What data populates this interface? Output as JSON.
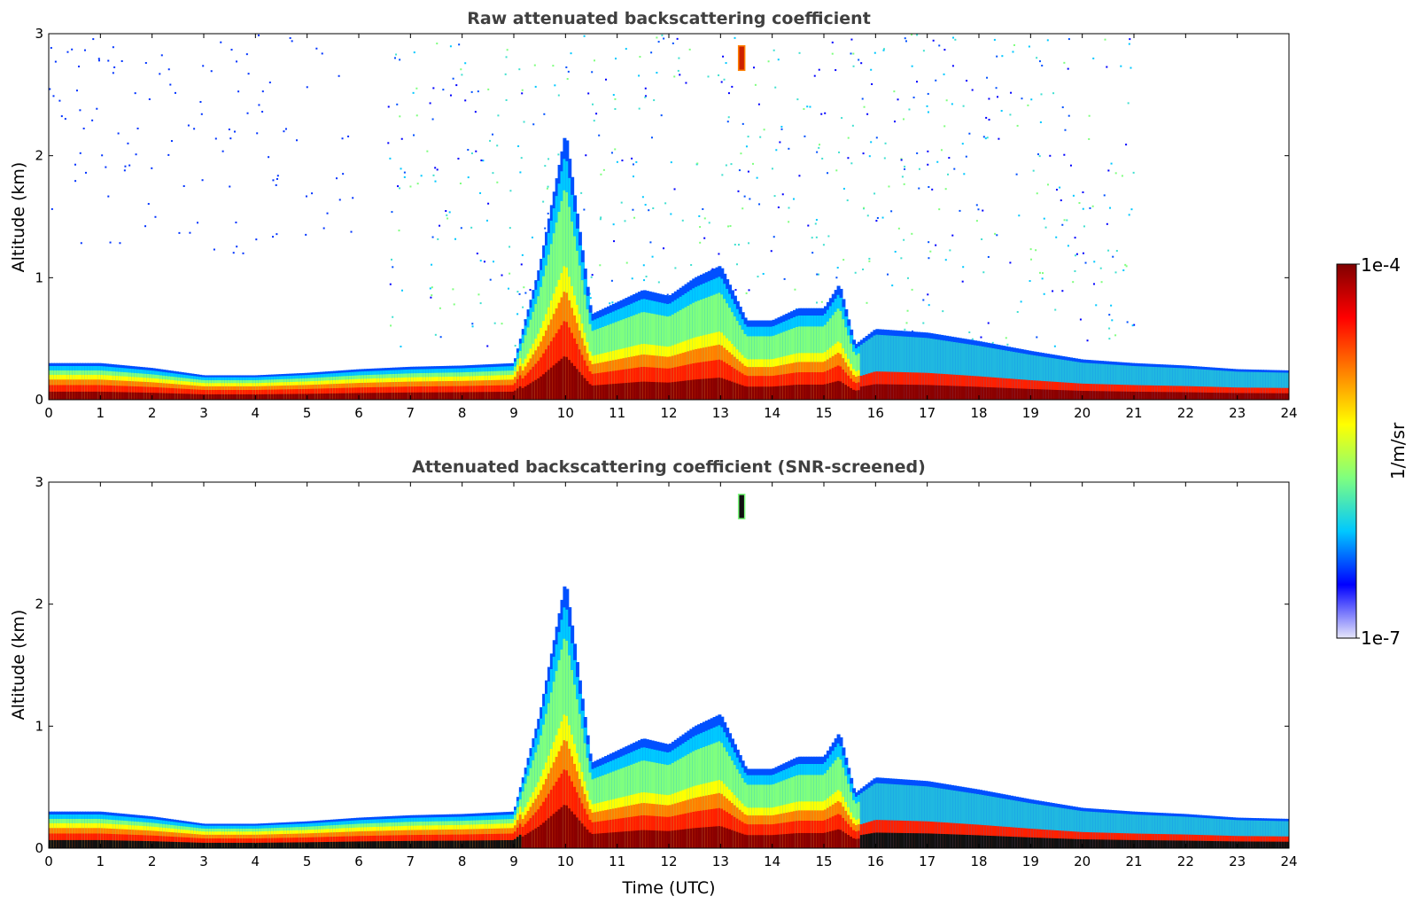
{
  "chart_data": [
    {
      "type": "heatmap",
      "title": "Raw attenuated backscattering coefficient",
      "xlabel": "",
      "ylabel": "Altitude (km)",
      "xlim": [
        0,
        24
      ],
      "ylim": [
        0,
        3
      ],
      "xticks": [
        "0",
        "1",
        "2",
        "3",
        "4",
        "5",
        "6",
        "7",
        "8",
        "9",
        "10",
        "11",
        "12",
        "13",
        "14",
        "15",
        "16",
        "17",
        "18",
        "19",
        "20",
        "21",
        "22",
        "23",
        "24"
      ],
      "yticks": [
        "0",
        "1",
        "2",
        "3"
      ],
      "layer_top_km": [
        [
          0,
          0.3
        ],
        [
          1,
          0.3
        ],
        [
          2,
          0.26
        ],
        [
          3,
          0.2
        ],
        [
          4,
          0.2
        ],
        [
          5,
          0.22
        ],
        [
          6,
          0.25
        ],
        [
          7,
          0.27
        ],
        [
          8,
          0.28
        ],
        [
          9,
          0.3
        ],
        [
          9.5,
          1.1
        ],
        [
          10,
          2.2
        ],
        [
          10.5,
          0.7
        ],
        [
          11,
          0.8
        ],
        [
          11.5,
          0.9
        ],
        [
          12,
          0.85
        ],
        [
          12.5,
          1.0
        ],
        [
          13,
          1.1
        ],
        [
          13.5,
          0.65
        ],
        [
          14,
          0.65
        ],
        [
          14.5,
          0.75
        ],
        [
          15,
          0.75
        ],
        [
          15.3,
          0.95
        ],
        [
          15.6,
          0.45
        ],
        [
          16,
          0.58
        ],
        [
          17,
          0.55
        ],
        [
          18,
          0.48
        ],
        [
          19,
          0.4
        ],
        [
          20,
          0.33
        ],
        [
          21,
          0.3
        ],
        [
          22,
          0.28
        ],
        [
          23,
          0.25
        ],
        [
          24,
          0.24
        ]
      ],
      "noise_region_km": {
        "x": [
          6.5,
          21
        ],
        "y": [
          0.4,
          3
        ]
      },
      "isolated_feature": {
        "x": 13.4,
        "y": [
          2.7,
          2.9
        ]
      }
    },
    {
      "type": "heatmap",
      "title": "Attenuated backscattering coefficient (SNR-screened)",
      "xlabel": "Time (UTC)",
      "ylabel": "Altitude (km)",
      "xlim": [
        0,
        24
      ],
      "ylim": [
        0,
        3
      ],
      "xticks": [
        "0",
        "1",
        "2",
        "3",
        "4",
        "5",
        "6",
        "7",
        "8",
        "9",
        "10",
        "11",
        "12",
        "13",
        "14",
        "15",
        "16",
        "17",
        "18",
        "19",
        "20",
        "21",
        "22",
        "23",
        "24"
      ],
      "yticks": [
        "0",
        "1",
        "2",
        "3"
      ],
      "layer_top_km": [
        [
          0,
          0.3
        ],
        [
          1,
          0.3
        ],
        [
          2,
          0.26
        ],
        [
          3,
          0.2
        ],
        [
          4,
          0.2
        ],
        [
          5,
          0.22
        ],
        [
          6,
          0.25
        ],
        [
          7,
          0.27
        ],
        [
          8,
          0.28
        ],
        [
          9,
          0.3
        ],
        [
          9.5,
          1.1
        ],
        [
          10,
          2.2
        ],
        [
          10.5,
          0.7
        ],
        [
          11,
          0.8
        ],
        [
          11.5,
          0.9
        ],
        [
          12,
          0.85
        ],
        [
          12.5,
          1.0
        ],
        [
          13,
          1.1
        ],
        [
          13.5,
          0.65
        ],
        [
          14,
          0.65
        ],
        [
          14.5,
          0.75
        ],
        [
          15,
          0.75
        ],
        [
          15.3,
          0.95
        ],
        [
          15.6,
          0.45
        ],
        [
          16,
          0.58
        ],
        [
          17,
          0.55
        ],
        [
          18,
          0.48
        ],
        [
          19,
          0.4
        ],
        [
          20,
          0.33
        ],
        [
          21,
          0.3
        ],
        [
          22,
          0.28
        ],
        [
          23,
          0.25
        ],
        [
          24,
          0.24
        ]
      ],
      "isolated_feature": {
        "x": 13.4,
        "y": [
          2.7,
          2.9
        ]
      }
    }
  ],
  "colorbar": {
    "label": "1/m/sr",
    "min_label": "1e-7",
    "max_label": "1e-4",
    "colors": [
      "#e6e6fa",
      "#0000ff",
      "#00c8ff",
      "#7fff7f",
      "#ffff00",
      "#ff8000",
      "#ff0000",
      "#800000"
    ]
  }
}
